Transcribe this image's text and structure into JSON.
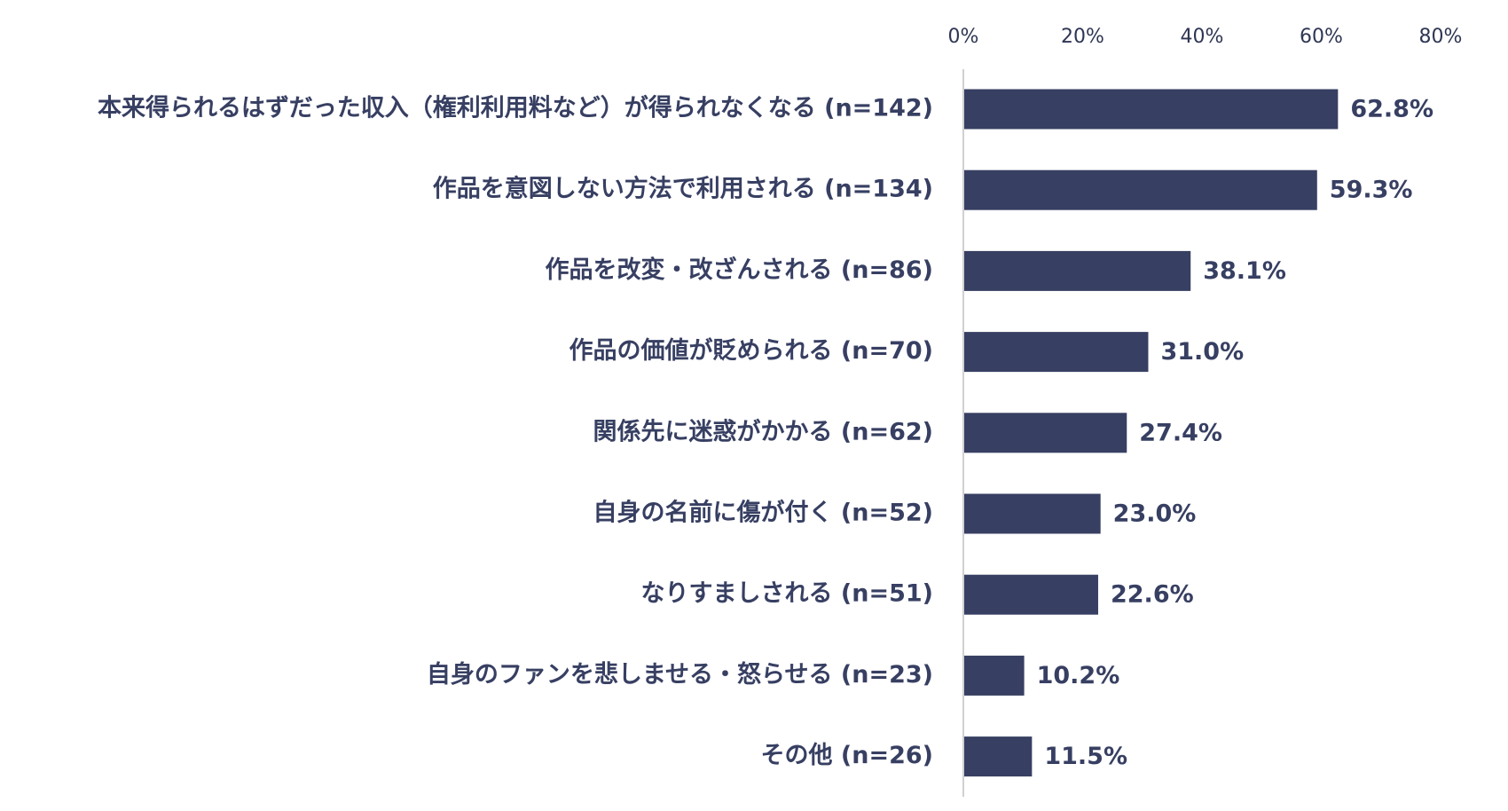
{
  "chart_data": {
    "type": "bar",
    "orientation": "horizontal",
    "categories": [
      "本来得られるはずだった収入（権利利用料など）が得られなくなる (n=142)",
      "作品を意図しない方法で利用される (n=134)",
      "作品を改変・改ざんされる (n=86)",
      "作品の価値が貶められる (n=70)",
      "関係先に迷惑がかかる (n=62)",
      "自身の名前に傷が付く (n=52)",
      "なりすましされる (n=51)",
      "自身のファンを悲しませる・怒らせる (n=23)",
      "その他 (n=26)"
    ],
    "values": [
      62.8,
      59.3,
      38.1,
      31.0,
      27.4,
      23.0,
      22.6,
      10.2,
      11.5
    ],
    "value_labels": [
      "62.8%",
      "59.3%",
      "38.1%",
      "31.0%",
      "27.4%",
      "23.0%",
      "22.6%",
      "10.2%",
      "11.5%"
    ],
    "xlim": [
      0,
      80
    ],
    "x_ticks": [
      0,
      20,
      40,
      60,
      80
    ],
    "x_tick_labels": [
      "0%",
      "20%",
      "40%",
      "60%",
      "80%"
    ],
    "x_axis_position": "top",
    "grid": false,
    "legend": false,
    "title": "",
    "xlabel": "",
    "ylabel": "",
    "colors": {
      "bar": "#373f62",
      "text": "#373f62",
      "axis": "#d0d0d0"
    }
  }
}
